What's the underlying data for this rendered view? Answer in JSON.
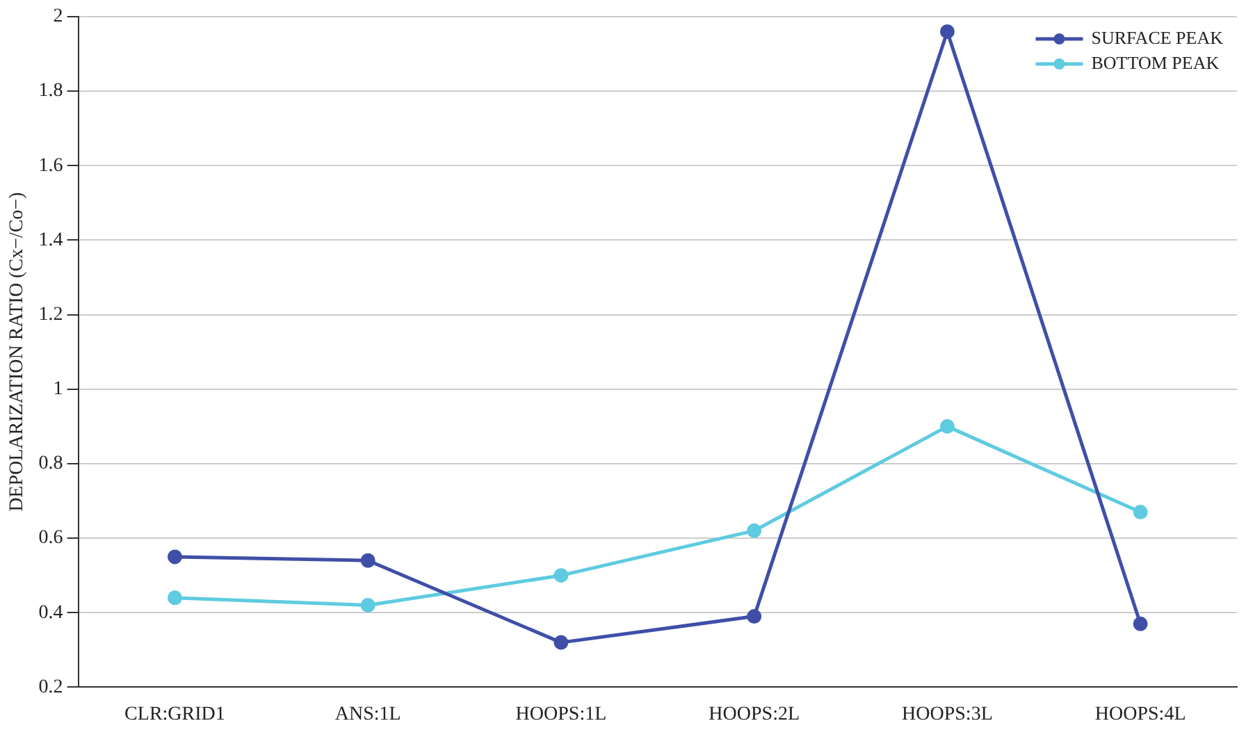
{
  "chart_data": {
    "type": "line",
    "ylabel": "DEPOLARIZATION RATIO (Cx−/Co−)",
    "categories": [
      "CLR:GRID1",
      "ANS:1L",
      "HOOPS:1L",
      "HOOPS:2L",
      "HOOPS:3L",
      "HOOPS:4L"
    ],
    "series": [
      {
        "name": "SURFACE PEAK",
        "color": "#3f4fa8",
        "values": [
          0.55,
          0.54,
          0.32,
          0.39,
          1.96,
          0.37
        ]
      },
      {
        "name": "BOTTOM PEAK",
        "color": "#5ecbe0",
        "values": [
          0.44,
          0.42,
          0.5,
          0.62,
          0.9,
          0.67
        ]
      }
    ],
    "ylim": [
      0.2,
      2
    ],
    "yticks": [
      0.2,
      0.4,
      0.6,
      0.8,
      1,
      1.2,
      1.4,
      1.6,
      1.8,
      2
    ],
    "grid": "y",
    "legend": "top right",
    "marker": "circle",
    "line_style": "solid"
  }
}
